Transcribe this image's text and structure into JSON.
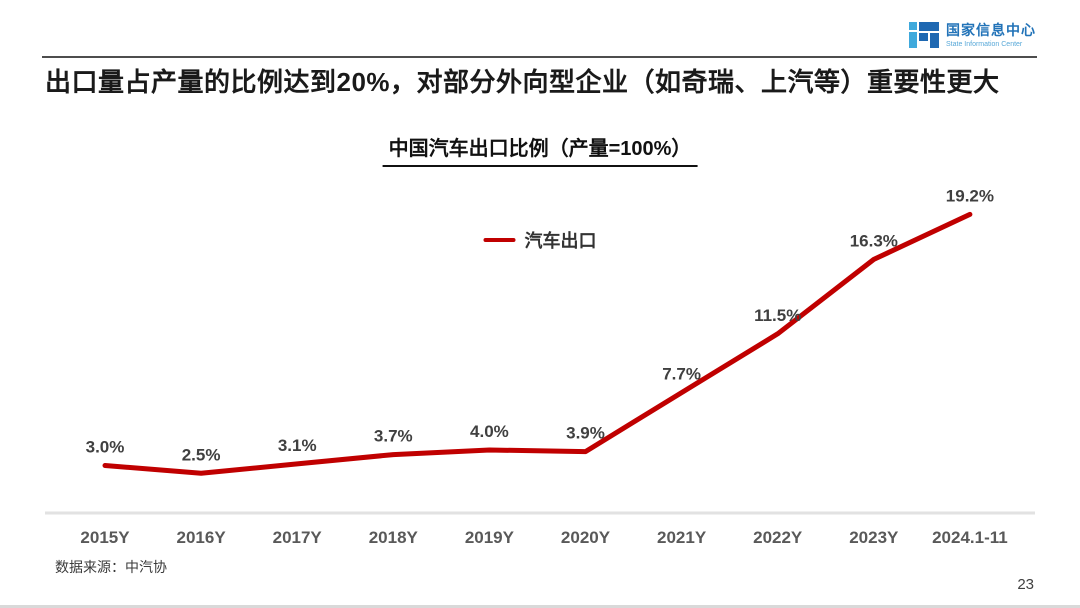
{
  "header": {
    "title": "出口量占产量的比例达到20%，对部分外向型企业（如奇瑞、上汽等）重要性更大",
    "logo": {
      "name": "国家信息中心",
      "subname": "State Information Center"
    }
  },
  "chart_data": {
    "type": "line",
    "title": "中国汽车出口比例（产量=100%）",
    "series_name": "汽车出口",
    "categories": [
      "2015Y",
      "2016Y",
      "2017Y",
      "2018Y",
      "2019Y",
      "2020Y",
      "2021Y",
      "2022Y",
      "2023Y",
      "2024.1-11"
    ],
    "values": [
      3.0,
      2.5,
      3.1,
      3.7,
      4.0,
      3.9,
      7.7,
      11.5,
      16.3,
      19.2
    ],
    "value_labels": [
      "3.0%",
      "2.5%",
      "3.1%",
      "3.7%",
      "4.0%",
      "3.9%",
      "7.7%",
      "11.5%",
      "16.3%",
      "19.2%"
    ],
    "ylim": [
      0,
      20
    ],
    "grid": false,
    "legend_position": "top-center",
    "xlabel": "",
    "ylabel": ""
  },
  "footer": {
    "source": "数据来源：中汽协",
    "page": "23"
  },
  "colors": {
    "line_red": "#C00000",
    "data_label": "#404040",
    "axis_label": "#595959",
    "axis_line": "#E2E2E2",
    "logo_blue": "#1E68B2",
    "logo_light_blue": "#3FA9DC"
  }
}
